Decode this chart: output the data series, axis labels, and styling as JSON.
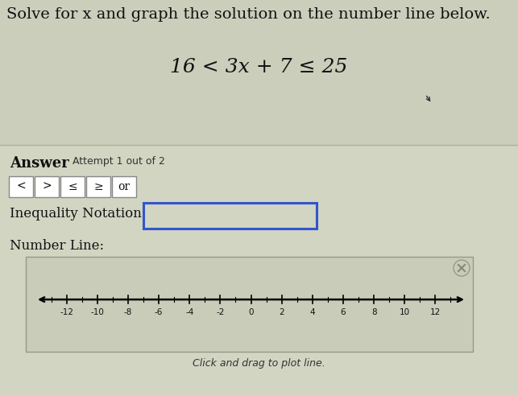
{
  "title_plain": "Solve for x and graph the solution on the number line below.",
  "equation_plain": "16 < 3x + 7 ≤ 25",
  "answer_label": "Answer",
  "attempt_label": "Attempt 1 out of 2",
  "buttons": [
    "<",
    ">",
    "≤",
    "≥",
    "or"
  ],
  "inequality_label": "Inequality Notation:",
  "number_line_label": "Number Line:",
  "click_label": "Click and drag to plot line.",
  "number_line_ticks": [
    -12,
    -10,
    -8,
    -6,
    -4,
    -2,
    0,
    2,
    4,
    6,
    8,
    10,
    12
  ],
  "bg_top": "#cccfbb",
  "bg_bottom": "#d4d7c4",
  "white": "#ffffff",
  "box_border_color": "#3355cc",
  "button_border_color": "#888888",
  "number_line_box_bg": "#c8ccb8",
  "number_line_range": [
    -13.5,
    13.5
  ],
  "separator_color": "#b0b3a0",
  "title_fontsize": 14,
  "equation_fontsize": 18
}
